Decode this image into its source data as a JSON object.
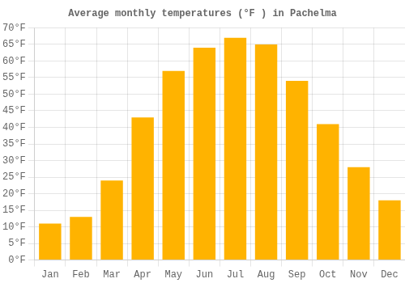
{
  "chart_data": {
    "type": "bar",
    "title": "Average monthly temperatures (°F ) in Pachelma",
    "categories": [
      "Jan",
      "Feb",
      "Mar",
      "Apr",
      "May",
      "Jun",
      "Jul",
      "Aug",
      "Sep",
      "Oct",
      "Nov",
      "Dec"
    ],
    "values": [
      11,
      13,
      24,
      43,
      57,
      64,
      67,
      65,
      54,
      41,
      28,
      18
    ],
    "color": "#FFB300",
    "ylim": [
      0,
      70
    ],
    "yticks": [
      {
        "value": 0,
        "label": "0°F"
      },
      {
        "value": 5,
        "label": "5°F"
      },
      {
        "value": 10,
        "label": "10°F"
      },
      {
        "value": 15,
        "label": "15°F"
      },
      {
        "value": 20,
        "label": "20°F"
      },
      {
        "value": 25,
        "label": "25°F"
      },
      {
        "value": 30,
        "label": "30°F"
      },
      {
        "value": 35,
        "label": "35°F"
      },
      {
        "value": 40,
        "label": "40°F"
      },
      {
        "value": 45,
        "label": "45°F"
      },
      {
        "value": 50,
        "label": "50°F"
      },
      {
        "value": 55,
        "label": "55°F"
      },
      {
        "value": 60,
        "label": "60°F"
      },
      {
        "value": 65,
        "label": "65°F"
      },
      {
        "value": 70,
        "label": "70°F"
      }
    ],
    "grid": true
  }
}
